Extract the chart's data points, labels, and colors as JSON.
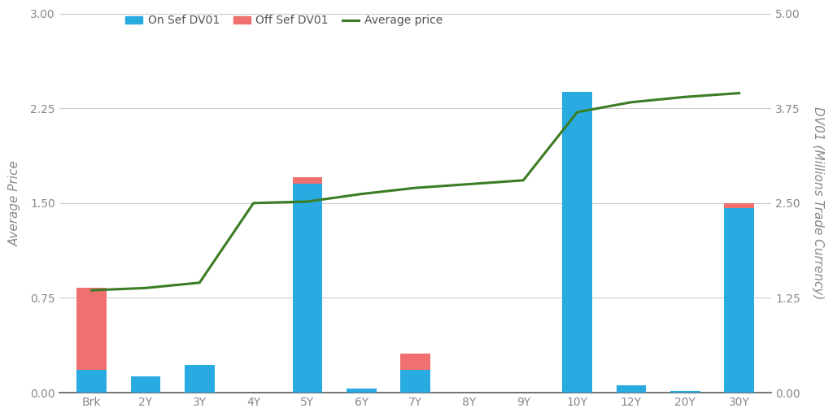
{
  "categories": [
    "Brk",
    "2Y",
    "3Y",
    "4Y",
    "5Y",
    "6Y",
    "7Y",
    "8Y",
    "9Y",
    "10Y",
    "12Y",
    "20Y",
    "30Y"
  ],
  "on_sef_dv01": [
    0.18,
    0.13,
    0.22,
    0.0,
    1.65,
    0.03,
    0.18,
    0.0,
    0.0,
    2.38,
    0.055,
    0.015,
    1.46
  ],
  "off_sef_dv01": [
    0.65,
    0.0,
    0.0,
    0.0,
    0.055,
    0.0,
    0.13,
    0.0,
    0.0,
    0.0,
    0.0,
    0.0,
    0.04
  ],
  "avg_price": [
    1.35,
    1.38,
    1.45,
    2.5,
    2.52,
    2.62,
    2.7,
    2.75,
    2.8,
    3.7,
    3.83,
    3.9,
    3.95
  ],
  "bar_color_on": "#29ABE2",
  "bar_color_off": "#F07070",
  "line_color": "#3A7D24",
  "left_ylim": [
    0.0,
    3.0
  ],
  "right_ylim": [
    0.0,
    5.0
  ],
  "left_yticks": [
    0.0,
    0.75,
    1.5,
    2.25,
    3.0
  ],
  "right_yticks": [
    0.0,
    1.25,
    2.5,
    3.75,
    5.0
  ],
  "ylabel_left": "Average Price",
  "ylabel_right": "DV01 (Millions Trade Currency)",
  "legend_on": "On Sef DV01",
  "legend_off": "Off Sef DV01",
  "legend_line": "Average price",
  "background_color": "#FFFFFF",
  "grid_color": "#CCCCCC"
}
